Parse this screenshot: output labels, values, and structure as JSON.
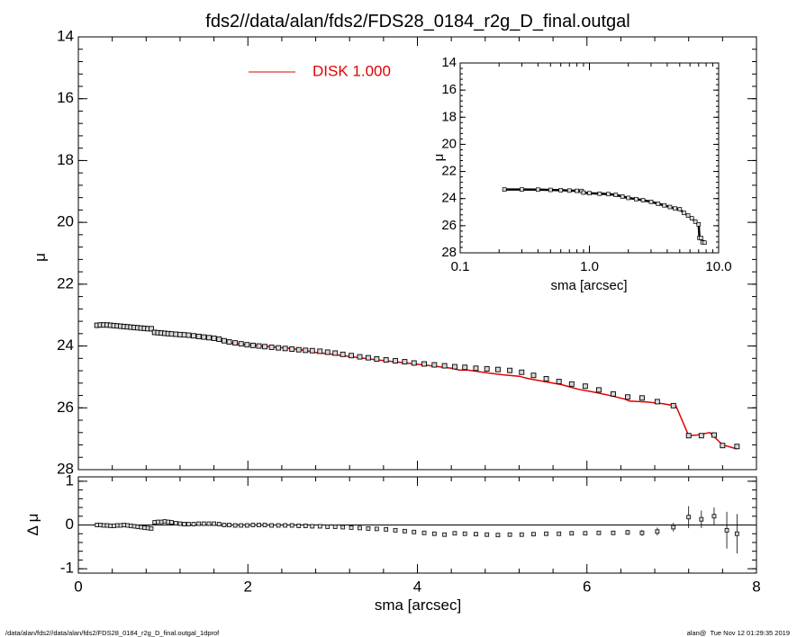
{
  "page": {
    "title": "fds2//data/alan/fds2/FDS28_0184_r2g_D_final.outgal",
    "footer_left": "/data/alan/fds2//data/alan/fds2/FDS28_0184_r2g_D_final.outgal_1dprof",
    "footer_right": "alan@  Tue Nov 12 01:29:35 2019",
    "legend_label": "DISK  1.000",
    "colors": {
      "model": "#e00000",
      "data": "#000000",
      "marker_fill": "#d8d8d8"
    }
  },
  "chart_data": [
    {
      "id": "main",
      "type": "scatter",
      "xlabel": "",
      "ylabel": "μ",
      "xlim": [
        0,
        8
      ],
      "ylim": [
        28,
        14
      ],
      "xticks": [
        "0",
        "2",
        "4",
        "6",
        "8"
      ],
      "yticks": [
        "14",
        "16",
        "18",
        "20",
        "22",
        "24",
        "26",
        "28"
      ],
      "legend": {
        "placement": "top-center",
        "entries": [
          "DISK  1.000"
        ]
      },
      "series": [
        {
          "name": "DISK  1.000",
          "kind": "line",
          "color": "#e00000",
          "x": [
            0.22,
            0.35,
            0.5,
            0.6,
            0.7,
            0.8,
            0.87,
            0.88,
            1.0,
            1.2,
            1.4,
            1.6,
            1.66,
            1.68,
            1.9,
            2.2,
            2.5,
            2.7,
            2.75,
            2.9,
            3.2,
            3.5,
            3.8,
            4.1,
            4.4,
            4.5,
            4.6,
            4.8,
            5.0,
            5.2,
            5.3,
            5.5,
            5.7,
            5.9,
            6.1,
            6.3,
            6.45,
            6.5,
            6.7,
            6.9,
            7.05,
            7.2,
            7.3,
            7.45,
            7.6,
            7.77
          ],
          "y": [
            23.36,
            23.37,
            23.42,
            23.43,
            23.46,
            23.48,
            23.5,
            23.58,
            23.62,
            23.64,
            23.68,
            23.74,
            23.79,
            23.85,
            23.94,
            24.01,
            24.08,
            24.15,
            24.2,
            24.24,
            24.34,
            24.44,
            24.53,
            24.62,
            24.72,
            24.78,
            24.78,
            24.86,
            24.93,
            24.98,
            25.05,
            25.15,
            25.25,
            25.4,
            25.5,
            25.62,
            25.72,
            25.78,
            25.81,
            25.87,
            25.94,
            26.9,
            26.88,
            26.8,
            27.2,
            27.33
          ]
        },
        {
          "name": "",
          "kind": "points",
          "x": [
            0.22,
            0.26,
            0.3,
            0.34,
            0.38,
            0.42,
            0.46,
            0.5,
            0.54,
            0.58,
            0.62,
            0.66,
            0.7,
            0.74,
            0.78,
            0.82,
            0.86,
            0.9,
            0.94,
            0.98,
            1.02,
            1.06,
            1.1,
            1.15,
            1.2,
            1.25,
            1.3,
            1.36,
            1.42,
            1.48,
            1.54,
            1.6,
            1.66,
            1.72,
            1.78,
            1.85,
            1.92,
            1.99,
            2.06,
            2.13,
            2.2,
            2.28,
            2.36,
            2.44,
            2.52,
            2.6,
            2.68,
            2.76,
            2.85,
            2.94,
            3.03,
            3.12,
            3.22,
            3.32,
            3.42,
            3.52,
            3.63,
            3.74,
            3.85,
            3.96,
            4.08,
            4.2,
            4.32,
            4.44,
            4.56,
            4.69,
            4.82,
            4.95,
            5.09,
            5.23,
            5.37,
            5.52,
            5.67,
            5.82,
            5.98,
            6.14,
            6.31,
            6.48,
            6.65,
            6.83,
            7.02,
            7.2,
            7.35,
            7.5,
            7.6,
            7.77
          ],
          "y": [
            23.33,
            23.32,
            23.32,
            23.32,
            23.33,
            23.34,
            23.35,
            23.36,
            23.37,
            23.38,
            23.39,
            23.4,
            23.41,
            23.42,
            23.43,
            23.44,
            23.44,
            23.56,
            23.57,
            23.58,
            23.59,
            23.6,
            23.61,
            23.62,
            23.63,
            23.64,
            23.65,
            23.67,
            23.69,
            23.71,
            23.73,
            23.75,
            23.78,
            23.83,
            23.87,
            23.9,
            23.93,
            23.96,
            23.98,
            24.0,
            24.02,
            24.04,
            24.06,
            24.08,
            24.1,
            24.12,
            24.14,
            24.15,
            24.17,
            24.2,
            24.23,
            24.27,
            24.31,
            24.35,
            24.38,
            24.42,
            24.45,
            24.48,
            24.51,
            24.55,
            24.58,
            24.61,
            24.64,
            24.67,
            24.69,
            24.72,
            24.74,
            24.76,
            24.79,
            24.85,
            24.95,
            25.06,
            25.15,
            25.23,
            25.3,
            25.42,
            25.55,
            25.65,
            25.68,
            25.8,
            25.93,
            26.9,
            26.9,
            26.88,
            27.22,
            27.25
          ]
        }
      ]
    },
    {
      "id": "residual",
      "type": "scatter",
      "xlabel": "sma [arcsec]",
      "ylabel": "Δ μ",
      "xlim": [
        0,
        8
      ],
      "ylim": [
        -1.1,
        1.1
      ],
      "xticks": [
        "0",
        "2",
        "4",
        "6",
        "8"
      ],
      "yticks": [
        "1",
        "0",
        "-1"
      ],
      "reference_line": 0,
      "series": [
        {
          "name": "",
          "kind": "points_with_errors",
          "x": [
            0.22,
            0.26,
            0.3,
            0.34,
            0.38,
            0.42,
            0.46,
            0.5,
            0.54,
            0.58,
            0.62,
            0.66,
            0.7,
            0.74,
            0.78,
            0.82,
            0.86,
            0.9,
            0.94,
            0.98,
            1.02,
            1.06,
            1.1,
            1.15,
            1.2,
            1.25,
            1.3,
            1.36,
            1.42,
            1.48,
            1.54,
            1.6,
            1.66,
            1.72,
            1.78,
            1.85,
            1.92,
            1.99,
            2.06,
            2.13,
            2.2,
            2.28,
            2.36,
            2.44,
            2.52,
            2.6,
            2.68,
            2.76,
            2.85,
            2.94,
            3.03,
            3.12,
            3.22,
            3.32,
            3.42,
            3.52,
            3.63,
            3.74,
            3.85,
            3.96,
            4.08,
            4.2,
            4.32,
            4.44,
            4.56,
            4.69,
            4.82,
            4.95,
            5.09,
            5.23,
            5.37,
            5.52,
            5.67,
            5.82,
            5.98,
            6.14,
            6.31,
            6.48,
            6.65,
            6.83,
            7.02,
            7.2,
            7.35,
            7.5,
            7.65,
            7.77
          ],
          "y": [
            0.0,
            0.0,
            -0.01,
            -0.01,
            -0.02,
            -0.02,
            -0.01,
            -0.01,
            0.0,
            -0.01,
            -0.02,
            -0.03,
            -0.04,
            -0.05,
            -0.06,
            -0.07,
            -0.08,
            0.06,
            0.07,
            0.07,
            0.08,
            0.07,
            0.06,
            0.04,
            0.03,
            0.02,
            0.02,
            0.02,
            0.03,
            0.03,
            0.03,
            0.03,
            0.02,
            0.0,
            0.0,
            -0.01,
            -0.01,
            -0.01,
            0.0,
            0.0,
            0.0,
            -0.01,
            -0.01,
            -0.01,
            -0.01,
            -0.02,
            -0.02,
            -0.03,
            -0.03,
            -0.04,
            -0.04,
            -0.05,
            -0.06,
            -0.07,
            -0.08,
            -0.09,
            -0.1,
            -0.12,
            -0.14,
            -0.16,
            -0.18,
            -0.2,
            -0.22,
            -0.19,
            -0.2,
            -0.21,
            -0.22,
            -0.23,
            -0.22,
            -0.22,
            -0.21,
            -0.2,
            -0.2,
            -0.19,
            -0.19,
            -0.18,
            -0.18,
            -0.17,
            -0.18,
            -0.15,
            -0.05,
            0.18,
            0.13,
            0.2,
            -0.12,
            -0.2
          ],
          "err": [
            0.01,
            0.01,
            0.01,
            0.01,
            0.01,
            0.01,
            0.01,
            0.01,
            0.01,
            0.01,
            0.01,
            0.01,
            0.01,
            0.01,
            0.01,
            0.01,
            0.01,
            0.01,
            0.01,
            0.01,
            0.01,
            0.01,
            0.01,
            0.01,
            0.01,
            0.01,
            0.01,
            0.01,
            0.01,
            0.01,
            0.01,
            0.01,
            0.01,
            0.01,
            0.01,
            0.01,
            0.01,
            0.01,
            0.01,
            0.01,
            0.01,
            0.01,
            0.01,
            0.01,
            0.01,
            0.01,
            0.01,
            0.01,
            0.01,
            0.01,
            0.01,
            0.01,
            0.01,
            0.01,
            0.01,
            0.01,
            0.01,
            0.01,
            0.01,
            0.01,
            0.02,
            0.02,
            0.02,
            0.02,
            0.02,
            0.02,
            0.02,
            0.02,
            0.02,
            0.02,
            0.03,
            0.03,
            0.03,
            0.03,
            0.04,
            0.04,
            0.05,
            0.06,
            0.07,
            0.09,
            0.1,
            0.25,
            0.2,
            0.2,
            0.42,
            0.45
          ]
        }
      ]
    },
    {
      "id": "inset",
      "type": "scatter",
      "xlabel": "sma [arcsec]",
      "ylabel": "μ",
      "xscale": "log",
      "xlim": [
        0.1,
        10.0
      ],
      "ylim": [
        28,
        14
      ],
      "xticks": [
        "0.1",
        "1.0",
        "10.0"
      ],
      "yticks": [
        "14",
        "16",
        "18",
        "20",
        "22",
        "24",
        "26",
        "28"
      ],
      "series": [
        {
          "name": "",
          "kind": "points_with_line",
          "x": [
            0.22,
            0.3,
            0.4,
            0.5,
            0.6,
            0.7,
            0.8,
            0.87,
            0.9,
            1.0,
            1.2,
            1.4,
            1.6,
            1.8,
            2.0,
            2.3,
            2.6,
            3.0,
            3.4,
            3.8,
            4.2,
            4.6,
            5.0,
            5.4,
            5.8,
            6.2,
            6.6,
            7.0,
            7.1,
            7.3,
            7.5,
            7.77
          ],
          "y": [
            23.33,
            23.33,
            23.34,
            23.36,
            23.38,
            23.41,
            23.43,
            23.44,
            23.56,
            23.6,
            23.64,
            23.67,
            23.73,
            23.85,
            23.95,
            24.04,
            24.12,
            24.24,
            24.38,
            24.5,
            24.62,
            24.73,
            24.78,
            25.06,
            25.25,
            25.45,
            25.7,
            25.9,
            26.9,
            26.9,
            27.22,
            27.25
          ]
        }
      ]
    }
  ]
}
